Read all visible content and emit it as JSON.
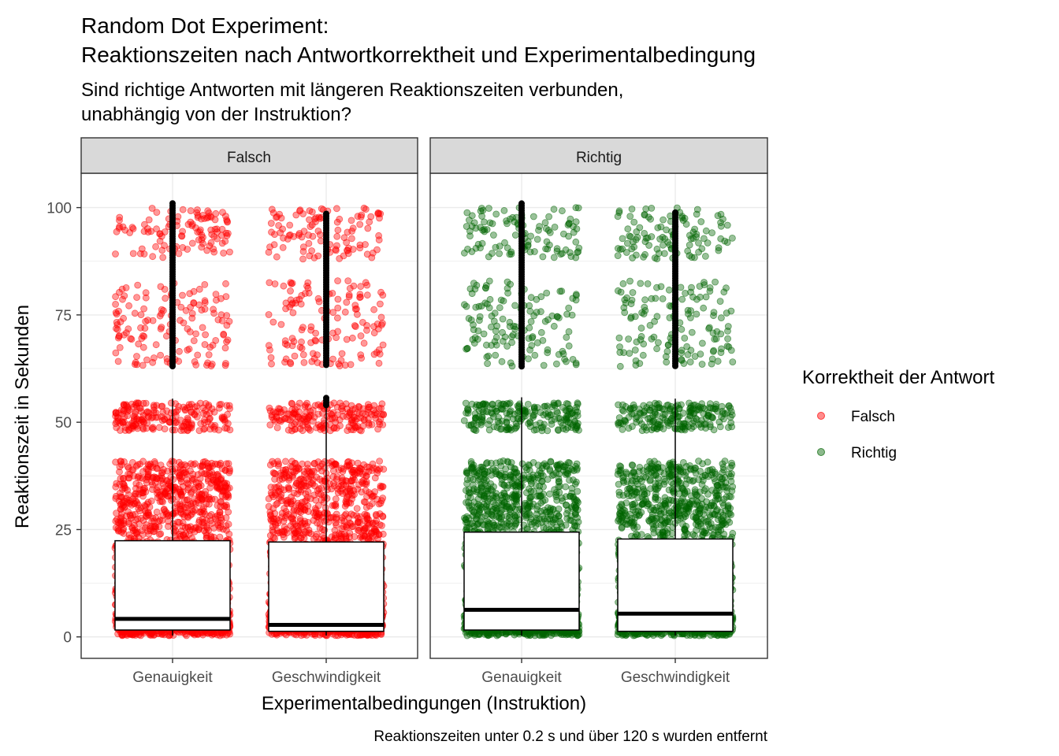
{
  "chart_data": {
    "type": "box",
    "title": [
      "Random Dot Experiment:",
      "Reaktionszeiten nach Antwortkorrektheit und Experimentalbedingung"
    ],
    "subtitle": [
      "Sind richtige Antworten mit längeren Reaktionszeiten verbunden,",
      "unabhängig von der Instruktion?"
    ],
    "xlabel": "Experimentalbedingungen (Instruktion)",
    "ylabel": "Reaktionszeit in Sekunden",
    "caption": "Reaktionszeiten unter 0.2 s und über 120 s wurden entfernt",
    "ylim": [
      -5,
      108
    ],
    "yticks": [
      0,
      25,
      50,
      75,
      100
    ],
    "categories": [
      "Genauigkeit",
      "Geschwindigkeit"
    ],
    "grid": true,
    "legend": {
      "title": "Korrektheit der Antwort",
      "position": "right",
      "entries": [
        {
          "label": "Falsch",
          "color": "#ff0000"
        },
        {
          "label": "Richtig",
          "color": "#006400"
        }
      ]
    },
    "panels": [
      {
        "label": "Falsch",
        "color": "#ff0000",
        "boxes": [
          {
            "category": "Genauigkeit",
            "q1": 1.6,
            "median": 4.2,
            "q3": 22.4,
            "whisker_low": 0.3,
            "whisker_high": 55.5,
            "outlier_range": [
              57,
              101
            ]
          },
          {
            "category": "Geschwindigkeit",
            "q1": 1.3,
            "median": 2.8,
            "q3": 22.1,
            "whisker_low": 0.3,
            "whisker_high": 53.5,
            "outlier_range": [
              54,
              99
            ]
          }
        ]
      },
      {
        "label": "Richtig",
        "color": "#006400",
        "boxes": [
          {
            "category": "Genauigkeit",
            "q1": 1.6,
            "median": 6.3,
            "q3": 24.4,
            "whisker_low": 0.3,
            "whisker_high": 55.8,
            "outlier_range": [
              63,
              101
            ]
          },
          {
            "category": "Geschwindigkeit",
            "q1": 1.3,
            "median": 5.4,
            "q3": 22.8,
            "whisker_low": 0.3,
            "whisker_high": 55.5,
            "outlier_range": [
              56.5,
              99
            ]
          }
        ]
      }
    ]
  }
}
